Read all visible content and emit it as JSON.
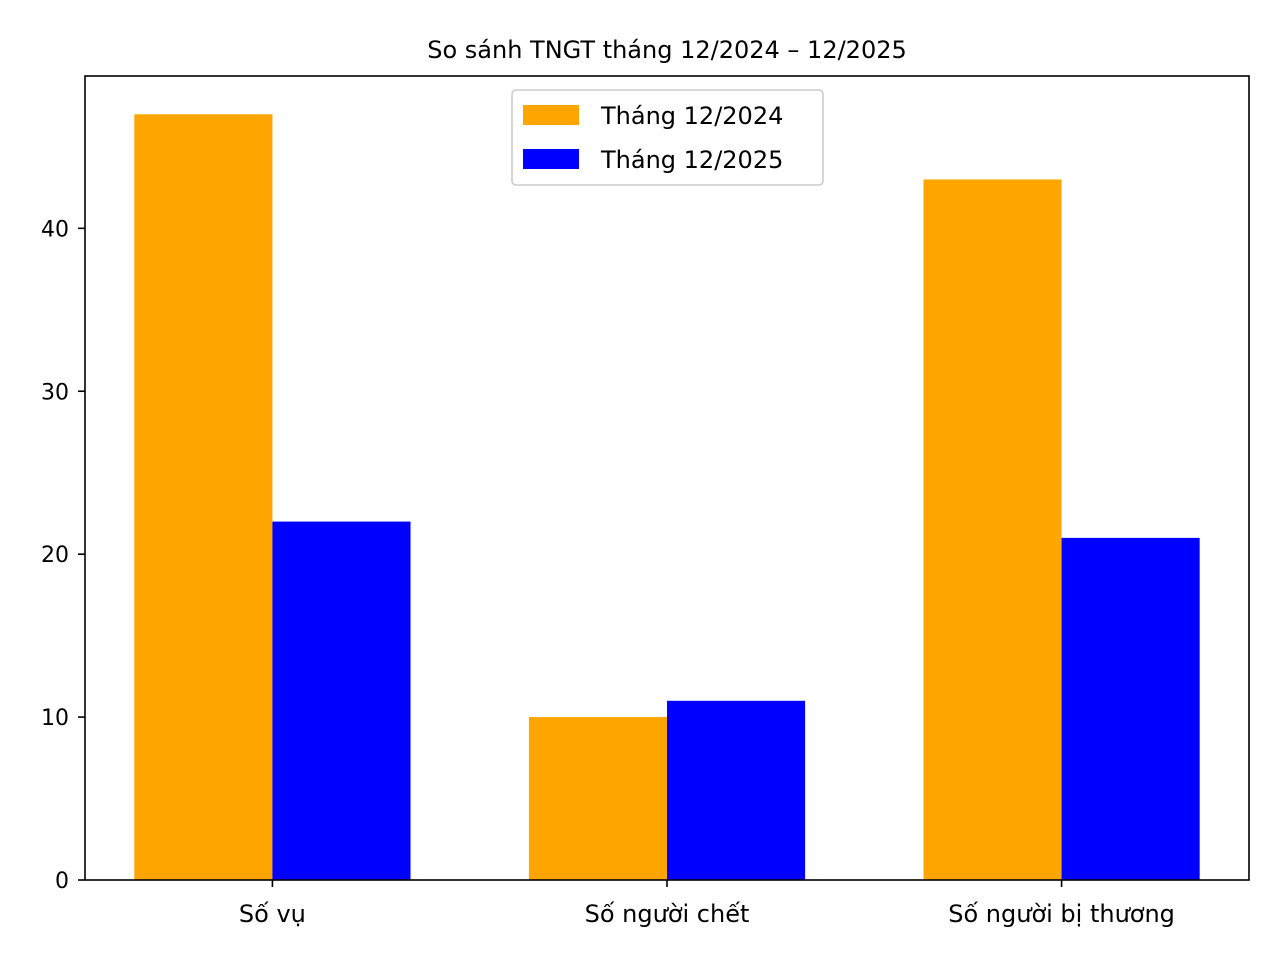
{
  "chart_data": {
    "type": "bar",
    "title": "So sánh TNGT tháng 12/2024 – 12/2025",
    "xlabel": "",
    "ylabel": "",
    "categories": [
      "Số vụ",
      "Số người chết",
      "Số người bị thương"
    ],
    "series": [
      {
        "name": "Tháng 12/2024",
        "values": [
          47,
          10,
          43
        ],
        "color": "#FFA500"
      },
      {
        "name": "Tháng 12/2025",
        "values": [
          22,
          11,
          21
        ],
        "color": "#0000FF"
      }
    ],
    "ylim": [
      0,
      49.35
    ],
    "yticks": [
      0,
      10,
      20,
      30,
      40
    ],
    "ytick_labels": [
      "0",
      "10",
      "20",
      "30",
      "40"
    ],
    "grid": false,
    "legend_position": "top-center"
  }
}
